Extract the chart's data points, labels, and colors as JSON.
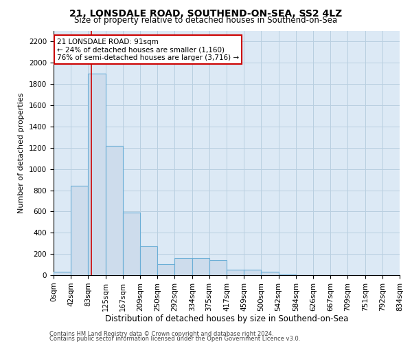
{
  "title": "21, LONSDALE ROAD, SOUTHEND-ON-SEA, SS2 4LZ",
  "subtitle": "Size of property relative to detached houses in Southend-on-Sea",
  "xlabel": "Distribution of detached houses by size in Southend-on-Sea",
  "ylabel": "Number of detached properties",
  "footnote1": "Contains HM Land Registry data © Crown copyright and database right 2024.",
  "footnote2": "Contains public sector information licensed under the Open Government Licence v3.0.",
  "bin_edges": [
    0,
    42,
    83,
    125,
    167,
    209,
    250,
    292,
    334,
    375,
    417,
    459,
    500,
    542,
    584,
    626,
    667,
    709,
    751,
    792,
    834
  ],
  "bar_heights": [
    30,
    840,
    1900,
    1220,
    590,
    270,
    105,
    165,
    160,
    145,
    55,
    50,
    30,
    5,
    0,
    0,
    0,
    0,
    0,
    0
  ],
  "bar_color": "#cddcec",
  "bar_edge_color": "#6aaed6",
  "bar_edge_width": 0.8,
  "grid_color": "#b8cfe0",
  "background_color": "#dce9f5",
  "property_size": 91,
  "red_line_color": "#cc0000",
  "annotation_line1": "21 LONSDALE ROAD: 91sqm",
  "annotation_line2": "← 24% of detached houses are smaller (1,160)",
  "annotation_line3": "76% of semi-detached houses are larger (3,716) →",
  "annotation_box_color": "#cc0000",
  "ylim": [
    0,
    2300
  ],
  "yticks": [
    0,
    200,
    400,
    600,
    800,
    1000,
    1200,
    1400,
    1600,
    1800,
    2000,
    2200
  ],
  "title_fontsize": 10,
  "subtitle_fontsize": 8.5,
  "xlabel_fontsize": 8.5,
  "ylabel_fontsize": 8,
  "tick_fontsize": 7.5,
  "annotation_fontsize": 7.5
}
